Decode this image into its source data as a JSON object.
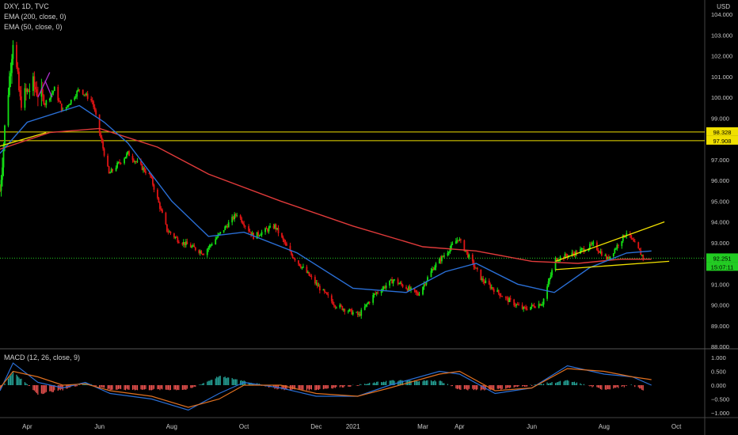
{
  "legend": {
    "symbol": "DXY, 1D, TVC",
    "ema200": "EMA (200, close, 0)",
    "ema50": "EMA (50, close, 0)",
    "macd": "MACD (12, 26, close, 9)"
  },
  "currency_label": "USD",
  "price_axis_labels": [
    "104.000",
    "103.000",
    "102.000",
    "101.000",
    "100.000",
    "99.000",
    "98.000",
    "97.000",
    "96.000",
    "95.000",
    "94.000",
    "93.000",
    "92.000",
    "91.000",
    "90.000",
    "89.000",
    "88.000"
  ],
  "macd_axis_labels": [
    "1.000",
    "0.500",
    "0.000",
    "−0.500",
    "−1.000"
  ],
  "time_axis_labels": [
    "Apr",
    "Jun",
    "Aug",
    "Oct",
    "Dec",
    "2021",
    "Mar",
    "Apr",
    "Jun",
    "Aug",
    "Oct"
  ],
  "price_badges": {
    "resistance_upper": "98.328",
    "resistance_lower": "97.908",
    "last_price": "92.251",
    "countdown": "15:07:11"
  },
  "colors": {
    "up": "#14e014",
    "down": "#e01414",
    "ema200": "#e03a3a",
    "ema50": "#2a6fd6",
    "trendline": "#f0e000",
    "hline": "#f0e000",
    "pitchfork": "#b030d0",
    "macd_line": "#2a6fd6",
    "signal_line": "#e07020",
    "lastprice": "#22cc22"
  },
  "chart_data": {
    "type": "candlestick",
    "x_range": [
      "2020-03-09",
      "2021-10-25"
    ],
    "price_range": [
      88,
      104
    ],
    "macd_range": [
      -1.0,
      1.0
    ],
    "candle_anchors": [
      {
        "date": "2020-03-09",
        "price": 95.5
      },
      {
        "date": "2020-03-13",
        "price": 98.5
      },
      {
        "date": "2020-03-20",
        "price": 102.8
      },
      {
        "date": "2020-03-26",
        "price": 99.8
      },
      {
        "date": "2020-04-06",
        "price": 100.6
      },
      {
        "date": "2020-04-16",
        "price": 99.7
      },
      {
        "date": "2020-04-24",
        "price": 100.4
      },
      {
        "date": "2020-05-01",
        "price": 99.3
      },
      {
        "date": "2020-05-15",
        "price": 100.4
      },
      {
        "date": "2020-05-26",
        "price": 99.8
      },
      {
        "date": "2020-06-09",
        "price": 96.3
      },
      {
        "date": "2020-06-25",
        "price": 97.3
      },
      {
        "date": "2020-07-14",
        "price": 96.2
      },
      {
        "date": "2020-07-28",
        "price": 93.6
      },
      {
        "date": "2020-08-07",
        "price": 93.1
      },
      {
        "date": "2020-08-28",
        "price": 92.5
      },
      {
        "date": "2020-09-25",
        "price": 94.4
      },
      {
        "date": "2020-10-09",
        "price": 93.3
      },
      {
        "date": "2020-10-27",
        "price": 93.8
      },
      {
        "date": "2020-11-09",
        "price": 92.5
      },
      {
        "date": "2020-12-04",
        "price": 90.8
      },
      {
        "date": "2020-12-17",
        "price": 90.0
      },
      {
        "date": "2021-01-06",
        "price": 89.5
      },
      {
        "date": "2021-01-19",
        "price": 90.5
      },
      {
        "date": "2021-02-04",
        "price": 91.2
      },
      {
        "date": "2021-02-25",
        "price": 90.5
      },
      {
        "date": "2021-03-10",
        "price": 91.8
      },
      {
        "date": "2021-03-31",
        "price": 93.2
      },
      {
        "date": "2021-04-20",
        "price": 91.2
      },
      {
        "date": "2021-05-10",
        "price": 90.3
      },
      {
        "date": "2021-05-25",
        "price": 89.8
      },
      {
        "date": "2021-06-10",
        "price": 90.1
      },
      {
        "date": "2021-06-21",
        "price": 92.2
      },
      {
        "date": "2021-07-08",
        "price": 92.5
      },
      {
        "date": "2021-07-23",
        "price": 92.9
      },
      {
        "date": "2021-08-04",
        "price": 92.2
      },
      {
        "date": "2021-08-20",
        "price": 93.5
      },
      {
        "date": "2021-09-03",
        "price": 92.3
      }
    ],
    "ema200": [
      {
        "date": "2020-03-09",
        "price": 97.5
      },
      {
        "date": "2020-04-20",
        "price": 98.3
      },
      {
        "date": "2020-06-01",
        "price": 98.5
      },
      {
        "date": "2020-07-20",
        "price": 97.6
      },
      {
        "date": "2020-09-01",
        "price": 96.3
      },
      {
        "date": "2020-11-01",
        "price": 95.0
      },
      {
        "date": "2021-01-01",
        "price": 93.8
      },
      {
        "date": "2021-03-01",
        "price": 92.8
      },
      {
        "date": "2021-04-15",
        "price": 92.6
      },
      {
        "date": "2021-06-01",
        "price": 92.1
      },
      {
        "date": "2021-07-10",
        "price": 92.0
      },
      {
        "date": "2021-08-15",
        "price": 92.2
      },
      {
        "date": "2021-09-10",
        "price": 92.2
      }
    ],
    "ema50": [
      {
        "date": "2020-03-09",
        "price": 97.3
      },
      {
        "date": "2020-04-01",
        "price": 98.8
      },
      {
        "date": "2020-05-15",
        "price": 99.6
      },
      {
        "date": "2020-06-05",
        "price": 98.8
      },
      {
        "date": "2020-06-25",
        "price": 97.8
      },
      {
        "date": "2020-08-01",
        "price": 95.0
      },
      {
        "date": "2020-09-01",
        "price": 93.3
      },
      {
        "date": "2020-10-01",
        "price": 93.5
      },
      {
        "date": "2020-11-15",
        "price": 92.5
      },
      {
        "date": "2021-01-01",
        "price": 90.8
      },
      {
        "date": "2021-02-15",
        "price": 90.6
      },
      {
        "date": "2021-03-20",
        "price": 91.6
      },
      {
        "date": "2021-04-15",
        "price": 92.0
      },
      {
        "date": "2021-05-20",
        "price": 91.0
      },
      {
        "date": "2021-06-20",
        "price": 90.6
      },
      {
        "date": "2021-07-20",
        "price": 91.8
      },
      {
        "date": "2021-08-20",
        "price": 92.5
      },
      {
        "date": "2021-09-10",
        "price": 92.6
      }
    ],
    "horizontal_levels": [
      98.328,
      97.908
    ],
    "last_price": 92.251,
    "trendlines": [
      {
        "from": {
          "date": "2020-03-06",
          "price": 97.6
        },
        "to": {
          "date": "2020-04-17",
          "price": 98.3
        },
        "color": "trendline"
      },
      {
        "from": {
          "date": "2021-06-21",
          "price": 92.1
        },
        "to": {
          "date": "2021-09-21",
          "price": 94.0
        },
        "color": "trendline"
      },
      {
        "from": {
          "date": "2021-06-21",
          "price": 91.7
        },
        "to": {
          "date": "2021-09-25",
          "price": 92.1
        },
        "color": "trendline"
      },
      {
        "from": {
          "date": "2020-04-10",
          "price": 100.0
        },
        "to": {
          "date": "2020-04-20",
          "price": 101.2
        },
        "color": "pitchfork"
      },
      {
        "from": {
          "date": "2020-04-16",
          "price": 100.8
        },
        "to": {
          "date": "2020-04-22",
          "price": 100.0
        },
        "color": "pitchfork"
      }
    ],
    "macd_anchors": [
      {
        "date": "2020-03-09",
        "macd": -0.2,
        "signal": -0.1
      },
      {
        "date": "2020-03-20",
        "macd": 0.8,
        "signal": 0.5
      },
      {
        "date": "2020-04-10",
        "macd": 0.1,
        "signal": 0.3
      },
      {
        "date": "2020-05-01",
        "macd": -0.1,
        "signal": 0.0
      },
      {
        "date": "2020-05-20",
        "macd": 0.1,
        "signal": 0.05
      },
      {
        "date": "2020-06-10",
        "macd": -0.3,
        "signal": -0.2
      },
      {
        "date": "2020-07-15",
        "macd": -0.5,
        "signal": -0.4
      },
      {
        "date": "2020-08-15",
        "macd": -0.9,
        "signal": -0.8
      },
      {
        "date": "2020-09-10",
        "macd": -0.3,
        "signal": -0.5
      },
      {
        "date": "2020-10-01",
        "macd": 0.1,
        "signal": 0.0
      },
      {
        "date": "2020-11-01",
        "macd": -0.1,
        "signal": 0.0
      },
      {
        "date": "2020-12-01",
        "macd": -0.4,
        "signal": -0.3
      },
      {
        "date": "2021-01-05",
        "macd": -0.4,
        "signal": -0.4
      },
      {
        "date": "2021-02-01",
        "macd": 0.0,
        "signal": -0.1
      },
      {
        "date": "2021-03-15",
        "macd": 0.5,
        "signal": 0.4
      },
      {
        "date": "2021-04-01",
        "macd": 0.4,
        "signal": 0.5
      },
      {
        "date": "2021-05-01",
        "macd": -0.3,
        "signal": -0.2
      },
      {
        "date": "2021-06-01",
        "macd": -0.1,
        "signal": -0.1
      },
      {
        "date": "2021-07-01",
        "macd": 0.7,
        "signal": 0.6
      },
      {
        "date": "2021-08-01",
        "macd": 0.4,
        "signal": 0.5
      },
      {
        "date": "2021-08-25",
        "macd": 0.3,
        "signal": 0.3
      },
      {
        "date": "2021-09-10",
        "macd": 0.0,
        "signal": 0.2
      }
    ]
  }
}
